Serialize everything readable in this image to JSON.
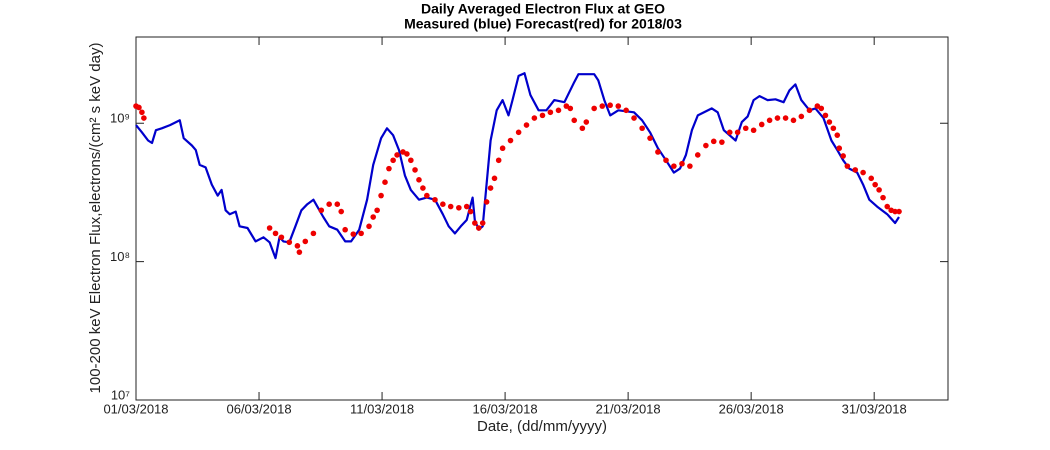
{
  "chart_data": {
    "type": "line",
    "title": "Daily Averaged Electron Flux at GEO",
    "subtitle": "Measured (blue) Forecast(red) for 2018/03",
    "xlabel": "Date, (dd/mm/yyyy)",
    "ylabel": "100-200 keV Electron Flux,electrons/(cm² s keV day)",
    "xlim": [
      0,
      33
    ],
    "xticks": [
      {
        "value": 0,
        "label": "01/03/2018"
      },
      {
        "value": 5,
        "label": "06/03/2018"
      },
      {
        "value": 10,
        "label": "11/03/2018"
      },
      {
        "value": 15,
        "label": "16/03/2018"
      },
      {
        "value": 20,
        "label": "21/03/2018"
      },
      {
        "value": 25,
        "label": "26/03/2018"
      },
      {
        "value": 30,
        "label": "31/03/2018"
      }
    ],
    "ylim": [
      10000000,
      4200000000
    ],
    "yticks": [
      {
        "value": 10000000,
        "label": "10⁷"
      },
      {
        "value": 100000000,
        "label": "10⁸"
      },
      {
        "value": 1000000000,
        "label": "10⁹"
      }
    ],
    "log_y": true,
    "series": [
      {
        "type": "line",
        "color": "#0000cc",
        "x": [
          0,
          0.24,
          0.49,
          0.65,
          0.81,
          1.05,
          1.38,
          1.78,
          1.94,
          2.27,
          2.43,
          2.59,
          2.83,
          3.08,
          3.32,
          3.48,
          3.64,
          3.81,
          4.05,
          4.21,
          4.53,
          4.86,
          5.18,
          5.43,
          5.67,
          5.83,
          5.99,
          6.23,
          6.48,
          6.72,
          6.96,
          7.21,
          7.37,
          7.61,
          7.85,
          8.18,
          8.5,
          8.74,
          9.07,
          9.39,
          9.64,
          9.96,
          10.2,
          10.45,
          10.69,
          10.93,
          11.17,
          11.5,
          11.82,
          12.15,
          12.47,
          12.71,
          12.96,
          13.2,
          13.44,
          13.68,
          13.77,
          13.93,
          14.09,
          14.41,
          14.66,
          14.9,
          15.14,
          15.3,
          15.55,
          15.79,
          16.03,
          16.36,
          16.68,
          16.84,
          17.0,
          17.41,
          17.81,
          17.98,
          18.62,
          18.79,
          19.03,
          19.27,
          19.6,
          20.24,
          20.57,
          20.89,
          21.21,
          21.54,
          21.86,
          22.11,
          22.35,
          22.59,
          22.83,
          23.4,
          23.64,
          23.89,
          24.37,
          24.62,
          24.86,
          25.1,
          25.34,
          25.67,
          25.99,
          26.32,
          26.56,
          26.8,
          27.04,
          27.37,
          27.61,
          27.94,
          28.26,
          28.5,
          28.74,
          28.99,
          29.31,
          29.55,
          29.8,
          30.12,
          30.53,
          30.85,
          31.01
        ],
        "values": [
          970000000,
          860000000,
          750000000,
          720000000,
          890000000,
          920000000,
          970000000,
          1050000000,
          780000000,
          690000000,
          640000000,
          500000000,
          480000000,
          360000000,
          300000000,
          330000000,
          235000000,
          220000000,
          230000000,
          180000000,
          175000000,
          140000000,
          150000000,
          138000000,
          106000000,
          150000000,
          140000000,
          138000000,
          180000000,
          235000000,
          260000000,
          280000000,
          250000000,
          210000000,
          180000000,
          170000000,
          140000000,
          140000000,
          170000000,
          280000000,
          500000000,
          780000000,
          920000000,
          820000000,
          640000000,
          420000000,
          330000000,
          280000000,
          290000000,
          280000000,
          220000000,
          180000000,
          160000000,
          180000000,
          200000000,
          290000000,
          200000000,
          170000000,
          180000000,
          750000000,
          1240000000,
          1470000000,
          1140000000,
          1470000000,
          2200000000,
          2300000000,
          1600000000,
          1240000000,
          1240000000,
          1350000000,
          1470000000,
          1420000000,
          1980000000,
          2260000000,
          2260000000,
          2040000000,
          1470000000,
          1140000000,
          1240000000,
          1200000000,
          1050000000,
          860000000,
          660000000,
          540000000,
          440000000,
          470000000,
          590000000,
          890000000,
          1140000000,
          1280000000,
          1200000000,
          890000000,
          750000000,
          1020000000,
          1120000000,
          1470000000,
          1570000000,
          1470000000,
          1490000000,
          1420000000,
          1730000000,
          1910000000,
          1470000000,
          1240000000,
          1280000000,
          1090000000,
          750000000,
          640000000,
          540000000,
          470000000,
          440000000,
          360000000,
          280000000,
          250000000,
          220000000,
          190000000,
          210000000
        ]
      },
      {
        "type": "scatter",
        "color": "#ee0000",
        "x": [
          0,
          0.12,
          0.24,
          0.32,
          5.43,
          5.67,
          5.91,
          6.23,
          6.56,
          6.64,
          6.88,
          7.21,
          7.53,
          7.85,
          8.18,
          8.34,
          8.5,
          8.83,
          9.15,
          9.47,
          9.64,
          9.8,
          9.96,
          10.12,
          10.28,
          10.45,
          10.61,
          10.85,
          11.01,
          11.17,
          11.34,
          11.5,
          11.66,
          11.82,
          12.15,
          12.47,
          12.79,
          13.12,
          13.44,
          13.6,
          13.77,
          13.93,
          14.09,
          14.25,
          14.41,
          14.57,
          14.74,
          14.9,
          15.22,
          15.55,
          15.87,
          16.19,
          16.52,
          16.84,
          17.17,
          17.49,
          17.65,
          17.81,
          18.14,
          18.3,
          18.62,
          18.95,
          19.27,
          19.6,
          19.92,
          20.24,
          20.57,
          20.89,
          21.21,
          21.54,
          21.86,
          22.19,
          22.51,
          22.83,
          23.16,
          23.48,
          23.81,
          24.13,
          24.45,
          24.78,
          25.1,
          25.43,
          25.75,
          26.07,
          26.4,
          26.72,
          27.04,
          27.37,
          27.69,
          27.85,
          28.02,
          28.18,
          28.34,
          28.5,
          28.58,
          28.74,
          28.91,
          29.23,
          29.55,
          29.88,
          30.04,
          30.2,
          30.36,
          30.53,
          30.69,
          30.85,
          31.01
        ],
        "values": [
          1330000000,
          1300000000,
          1200000000,
          1090000000,
          175000000,
          160000000,
          150000000,
          138000000,
          130000000,
          117000000,
          140000000,
          160000000,
          235000000,
          260000000,
          260000000,
          230000000,
          170000000,
          158000000,
          160000000,
          180000000,
          210000000,
          235000000,
          300000000,
          375000000,
          470000000,
          540000000,
          590000000,
          620000000,
          600000000,
          540000000,
          460000000,
          390000000,
          340000000,
          300000000,
          280000000,
          260000000,
          250000000,
          245000000,
          250000000,
          230000000,
          190000000,
          175000000,
          190000000,
          270000000,
          340000000,
          400000000,
          540000000,
          660000000,
          750000000,
          860000000,
          970000000,
          1090000000,
          1140000000,
          1200000000,
          1240000000,
          1330000000,
          1280000000,
          1050000000,
          920000000,
          1020000000,
          1280000000,
          1330000000,
          1350000000,
          1330000000,
          1240000000,
          1090000000,
          920000000,
          780000000,
          620000000,
          540000000,
          490000000,
          510000000,
          490000000,
          590000000,
          690000000,
          740000000,
          730000000,
          860000000,
          860000000,
          920000000,
          890000000,
          980000000,
          1050000000,
          1090000000,
          1090000000,
          1050000000,
          1120000000,
          1240000000,
          1330000000,
          1280000000,
          1140000000,
          1020000000,
          920000000,
          820000000,
          660000000,
          580000000,
          490000000,
          460000000,
          440000000,
          400000000,
          360000000,
          330000000,
          290000000,
          250000000,
          235000000,
          230000000,
          230000000
        ]
      }
    ]
  }
}
